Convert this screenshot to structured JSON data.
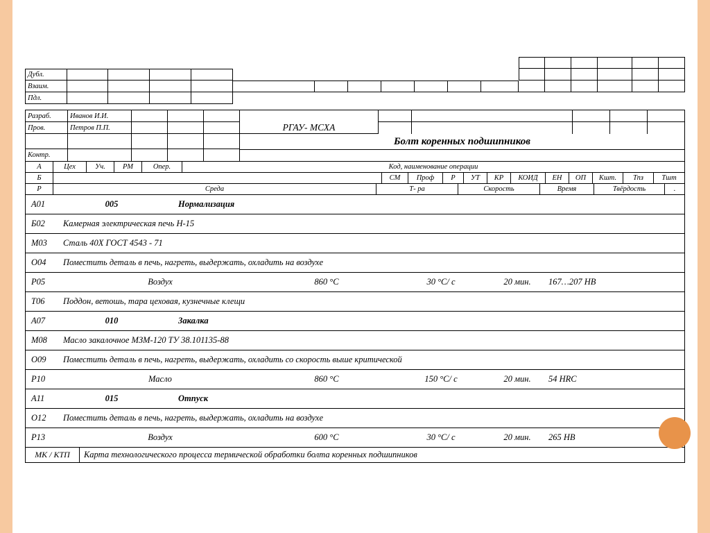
{
  "topLabels": {
    "dubl": "Дубл.",
    "vzaim": "Взаим.",
    "podl": "Пдл."
  },
  "sig": {
    "razrab": "Разраб.",
    "razrab_name": "Иванов И.И.",
    "prov": "Пров.",
    "prov_name": "Петров П.П.",
    "kontr": "Контр.",
    "org": "РГАУ- МСХА",
    "title": "Болт коренных подшипников"
  },
  "hdr": {
    "A": "А",
    "tsekh": "Цех",
    "uch": "Уч.",
    "rm": "РМ",
    "oper": "Опер.",
    "kod": "Код, наименование операции",
    "B": "Б",
    "sm": "СМ",
    "prof": "Проф",
    "p": "Р",
    "ut": "УТ",
    "kr": "КР",
    "koid": "КОИД",
    "en": "ЕН",
    "op": "ОП",
    "kut": "Кшт.",
    "tpz": "Тпз",
    "tsht": "Тшт",
    "R": "Р",
    "sreda": "Среда",
    "tra": "Т- ра",
    "skor": "Скорость",
    "vremya": "Время",
    "tverd": "Твёрдость"
  },
  "ops": [
    {
      "code": "А01",
      "num": "005",
      "name": "Нормализация",
      "bold": true
    },
    {
      "code": "Б02",
      "text": "Камерная электрическая печь Н-15"
    },
    {
      "code": "М03",
      "text": "Сталь 40Х ГОСТ 4543 - 71"
    },
    {
      "code": "О04",
      "text": "Поместить деталь в печь, нагреть, выдержать, охладить на воздухе"
    },
    {
      "code": "Р05",
      "sreda": "Воздух",
      "t": "860 °С",
      "sk": "30 °С/ с",
      "vr": "20 мин.",
      "tv": "167…207 НВ"
    },
    {
      "code": "Т06",
      "text": "Поддон, ветошь, тара цеховая, кузнечные клещи"
    },
    {
      "code": "А07",
      "num": "010",
      "name": "Закалка",
      "bold": true
    },
    {
      "code": "М08",
      "text": "Масло закалочное МЗМ-120 ТУ 38.101135-88"
    },
    {
      "code": "О09",
      "text": "Поместить деталь в печь, нагреть, выдержать, охладить со скорость выше критической"
    },
    {
      "code": "Р10",
      "sreda": "Масло",
      "t": "860 °С",
      "sk": "150 °С/ с",
      "vr": "20 мин.",
      "tv": "54 HRC"
    },
    {
      "code": "А11",
      "num": "015",
      "name": "Отпуск",
      "bold": true
    },
    {
      "code": "О12",
      "text": "Поместить деталь в печь, нагреть, выдержать, охладить на воздухе"
    },
    {
      "code": "Р13",
      "sreda": "Воздух",
      "t": "600 °С",
      "sk": "30 °С/ с",
      "vr": "20 мин.",
      "tv": "265 НВ"
    }
  ],
  "footer": {
    "mk": "МК / КТП",
    "txt": "Карта технологического процесса термической обработки болта коренных подшипников"
  },
  "colors": {
    "strip": "#f7c9a0",
    "circle": "#e8934a",
    "line": "#000000",
    "text": "#000000"
  }
}
